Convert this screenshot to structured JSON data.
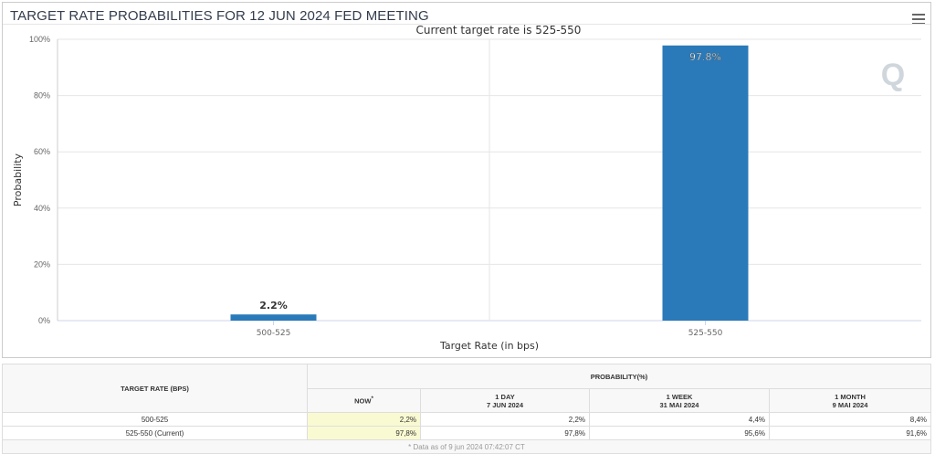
{
  "chart_data": {
    "type": "bar",
    "title": "TARGET RATE PROBABILITIES FOR 12 JUN 2024 FED MEETING",
    "subtitle": "Current target rate is 525-550",
    "categories": [
      "500-525",
      "525-550"
    ],
    "values": [
      2.2,
      97.8
    ],
    "data_labels": [
      "2.2%",
      "97.8%"
    ],
    "xlabel": "Target Rate (in bps)",
    "ylabel": "Probability",
    "ylim": [
      0,
      100
    ],
    "yticks": [
      0,
      20,
      40,
      60,
      80,
      100
    ],
    "ytick_labels": [
      "0%",
      "20%",
      "40%",
      "60%",
      "80%",
      "100%"
    ],
    "bar_color": "#2a7ab9",
    "grid": true
  },
  "menu_icon": "hamburger-icon",
  "watermark": "Q",
  "table": {
    "col_header_rate": "TARGET RATE (BPS)",
    "col_header_prob": "PROBABILITY(%)",
    "sub_headers": [
      {
        "line1": "NOW",
        "mark": "*",
        "line2": ""
      },
      {
        "line1": "1 DAY",
        "line2": "7 JUN 2024"
      },
      {
        "line1": "1 WEEK",
        "line2": "31 MAI 2024"
      },
      {
        "line1": "1 MONTH",
        "line2": "9 MAI 2024"
      }
    ],
    "rows": [
      {
        "rate": "500-525",
        "values": [
          "2,2%",
          "2,2%",
          "4,4%",
          "8,4%"
        ]
      },
      {
        "rate": "525-550 (Current)",
        "values": [
          "97,8%",
          "97,8%",
          "95,6%",
          "91,6%"
        ]
      }
    ],
    "footnote": "* Data as of 9 jun 2024 07:42:07 CT"
  }
}
